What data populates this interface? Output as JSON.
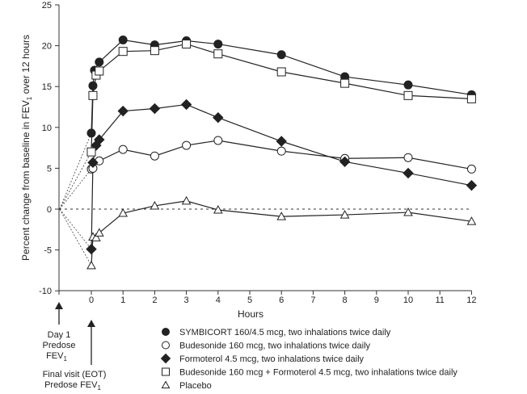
{
  "chart_data": {
    "type": "line",
    "title": "",
    "xlabel": "Hours",
    "ylabel": "Percent change from baseline in FEV1 over 12 hours",
    "ylabel_parts": {
      "pre": "Percent change from baseline in FEV",
      "sub": "1",
      "post": " over 12 hours"
    },
    "xlim": [
      -1,
      12
    ],
    "ylim": [
      -10,
      25
    ],
    "xticks": [
      0,
      1,
      2,
      3,
      4,
      5,
      6,
      7,
      8,
      9,
      10,
      11,
      12
    ],
    "yticks": [
      -10,
      -5,
      0,
      5,
      10,
      15,
      20,
      25
    ],
    "grid": false,
    "reference_line_y": 0,
    "baseline_point": [
      -1,
      0
    ],
    "annotations": {
      "day1": {
        "line1": "Day 1",
        "line2": "Predose",
        "line3": "FEV",
        "sub": "1"
      },
      "final": {
        "line1": "Final visit (EOT)",
        "line2": "Predose FEV",
        "sub": "1"
      }
    },
    "legend_placement": "bottom",
    "series": [
      {
        "name": "SYMBICORT 160/4.5 mcg, two inhalations twice daily",
        "marker": "filled-circle",
        "x": [
          0,
          0.05,
          0.1,
          0.25,
          1,
          2,
          3,
          4,
          6,
          8,
          10,
          12
        ],
        "y": [
          9.3,
          15.1,
          17.0,
          18.0,
          20.7,
          20.1,
          20.6,
          20.2,
          18.9,
          16.2,
          15.2,
          14.0
        ]
      },
      {
        "name": "Budesonide 160 mcg, two inhalations twice daily",
        "marker": "open-circle",
        "x": [
          0,
          0.05,
          0.25,
          1,
          2,
          3,
          4,
          6,
          8,
          10,
          12
        ],
        "y": [
          4.9,
          5.0,
          5.9,
          7.3,
          6.5,
          7.8,
          8.4,
          7.1,
          6.2,
          6.3,
          4.9
        ]
      },
      {
        "name": "Formoterol 4.5 mcg, two inhalations twice daily",
        "marker": "filled-diamond",
        "x": [
          0,
          0.05,
          0.15,
          0.25,
          1,
          2,
          3,
          4,
          6,
          8,
          10,
          12
        ],
        "y": [
          -4.9,
          5.7,
          7.8,
          8.5,
          12.0,
          12.3,
          12.8,
          11.2,
          8.3,
          5.8,
          4.4,
          2.9
        ]
      },
      {
        "name": "Budesonide 160 mcg + Formoterol 4.5 mcg, two inhalations twice daily",
        "marker": "open-square",
        "x": [
          0,
          0.05,
          0.15,
          0.25,
          1,
          2,
          3,
          4,
          6,
          8,
          10,
          12
        ],
        "y": [
          7.0,
          13.9,
          16.4,
          16.9,
          19.3,
          19.4,
          20.2,
          19.0,
          16.8,
          15.4,
          13.9,
          13.5
        ]
      },
      {
        "name": "Placebo",
        "marker": "open-triangle",
        "x": [
          0,
          0.05,
          0.15,
          0.25,
          1,
          2,
          3,
          4,
          6,
          8,
          10,
          12
        ],
        "y": [
          -6.9,
          -3.4,
          -3.5,
          -2.9,
          -0.5,
          0.4,
          1.0,
          -0.1,
          -0.9,
          -0.7,
          -0.4,
          -1.5
        ]
      }
    ]
  }
}
